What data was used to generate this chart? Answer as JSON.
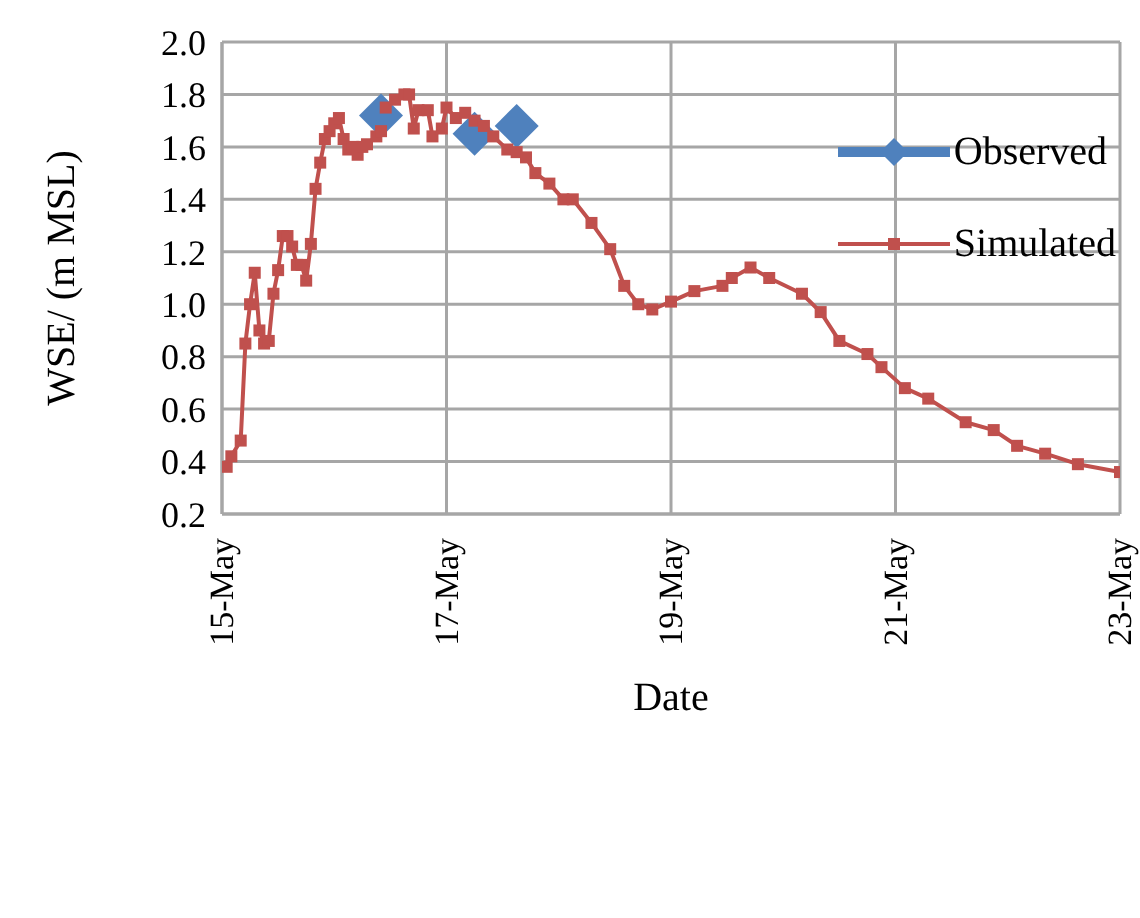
{
  "chart_data": {
    "type": "line",
    "xlabel": "Date",
    "ylabel": "WSE/ (m MSL)",
    "xlim": [
      "--05-15",
      "--05-23"
    ],
    "xticks": [
      {
        "value": "--05-15",
        "label": "15-May"
      },
      {
        "value": "--05-17",
        "label": "17-May"
      },
      {
        "value": "--05-19",
        "label": "19-May"
      },
      {
        "value": "--05-21",
        "label": "21-May"
      },
      {
        "value": "--05-23",
        "label": "23-May"
      }
    ],
    "ylim": [
      0.2,
      2.0
    ],
    "yticks": [
      0.2,
      0.4,
      0.6,
      0.8,
      {
        "value": 1,
        "label": "1.0"
      },
      1.2,
      1.4,
      1.6,
      1.8,
      {
        "value": 2,
        "label": "2.0"
      }
    ],
    "grid": true,
    "legend": "top right",
    "series": [
      {
        "name": "Observed",
        "type": "scatter",
        "marker": "diamond",
        "color": "#4f81bd",
        "x": [
          "--05-16T10:00",
          "--05-17T06:00",
          "--05-17T15:00"
        ],
        "values": [
          1.72,
          1.65,
          1.68
        ]
      },
      {
        "name": "Simulated",
        "type": "line",
        "marker": "square",
        "line_style": "solid",
        "color": "#c0504d",
        "x": [
          "--05-15T01:00",
          "--05-15T02:00",
          "--05-15T04:00",
          "--05-15T05:00",
          "--05-15T06:00",
          "--05-15T07:00",
          "--05-15T08:00",
          "--05-15T09:00",
          "--05-15T10:00",
          "--05-15T11:00",
          "--05-15T12:00",
          "--05-15T13:00",
          "--05-15T14:00",
          "--05-15T15:00",
          "--05-15T16:00",
          "--05-15T17:00",
          "--05-15T18:00",
          "--05-15T19:00",
          "--05-15T20:00",
          "--05-15T21:00",
          "--05-15T22:00",
          "--05-15T23:00",
          "--05-16T00:00",
          "--05-16T01:00",
          "--05-16T02:00",
          "--05-16T03:00",
          "--05-16T04:00",
          "--05-16T05:00",
          "--05-16T06:00",
          "--05-16T07:00",
          "--05-16T09:00",
          "--05-16T10:00",
          "--05-16T11:00",
          "--05-16T13:00",
          "--05-16T15:00",
          "--05-16T16:00",
          "--05-16T17:00",
          "--05-16T18:00",
          "--05-16T20:00",
          "--05-16T21:00",
          "--05-16T23:00",
          "--05-17T00:00",
          "--05-17T02:00",
          "--05-17T04:00",
          "--05-17T06:00",
          "--05-17T08:00",
          "--05-17T10:00",
          "--05-17T13:00",
          "--05-17T15:00",
          "--05-17T17:00",
          "--05-17T19:00",
          "--05-17T22:00",
          "--05-18T01:00",
          "--05-18T03:00",
          "--05-18T07:00",
          "--05-18T11:00",
          "--05-18T14:00",
          "--05-18T17:00",
          "--05-18T20:00",
          "--05-19T00:00",
          "--05-19T05:00",
          "--05-19T11:00",
          "--05-19T13:00",
          "--05-19T17:00",
          "--05-19T21:00",
          "--05-20T04:00",
          "--05-20T08:00",
          "--05-20T12:00",
          "--05-20T18:00",
          "--05-20T21:00",
          "--05-21T02:00",
          "--05-21T07:00",
          "--05-21T15:00",
          "--05-21T21:00",
          "--05-22T02:00",
          "--05-22T08:00",
          "--05-22T15:00",
          "--05-23T00:00"
        ],
        "values": [
          0.38,
          0.42,
          0.48,
          0.85,
          1.0,
          1.12,
          0.9,
          0.85,
          0.86,
          1.04,
          1.13,
          1.26,
          1.26,
          1.22,
          1.15,
          1.15,
          1.09,
          1.23,
          1.44,
          1.54,
          1.63,
          1.66,
          1.69,
          1.71,
          1.63,
          1.59,
          1.6,
          1.57,
          1.6,
          1.61,
          1.64,
          1.66,
          1.75,
          1.78,
          1.8,
          1.8,
          1.67,
          1.74,
          1.74,
          1.64,
          1.67,
          1.75,
          1.71,
          1.73,
          1.7,
          1.68,
          1.64,
          1.59,
          1.58,
          1.56,
          1.5,
          1.46,
          1.4,
          1.4,
          1.31,
          1.21,
          1.07,
          1.0,
          0.98,
          1.01,
          1.05,
          1.07,
          1.1,
          1.14,
          1.1,
          1.04,
          0.97,
          0.86,
          0.81,
          0.76,
          0.68,
          0.64,
          0.55,
          0.52,
          0.46,
          0.43,
          0.39,
          0.36
        ]
      }
    ]
  }
}
